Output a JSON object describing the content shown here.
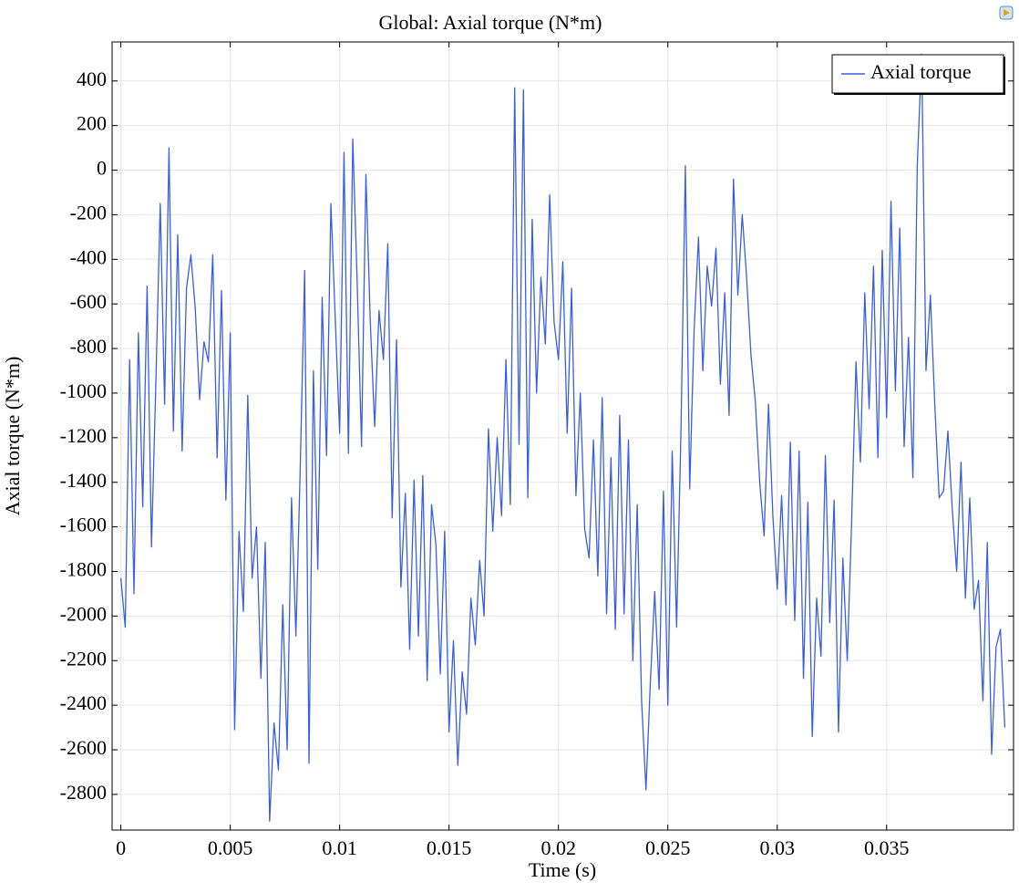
{
  "chart_data": {
    "type": "line",
    "title": "Global: Axial torque (N*m)",
    "xlabel": "Time (s)",
    "ylabel": "Axial torque (N*m)",
    "xlim": [
      -0.0004,
      0.0408
    ],
    "ylim": [
      -2960,
      575
    ],
    "xticks": [
      0,
      0.005,
      0.01,
      0.015,
      0.02,
      0.025,
      0.03,
      0.035
    ],
    "yticks": [
      -2800,
      -2600,
      -2400,
      -2200,
      -2000,
      -1800,
      -1600,
      -1400,
      -1200,
      -1000,
      -800,
      -600,
      -400,
      -200,
      0,
      200,
      400
    ],
    "grid": true,
    "legend": "upper right",
    "x": [
      0,
      0.0002,
      0.0004,
      0.0006,
      0.0008,
      0.001,
      0.0012,
      0.0014,
      0.0016,
      0.0018,
      0.002,
      0.0022,
      0.0024,
      0.0026,
      0.0028,
      0.003,
      0.0032,
      0.0034,
      0.0036,
      0.0038,
      0.004,
      0.0042,
      0.0044,
      0.0046,
      0.0048,
      0.005,
      0.0052,
      0.0054,
      0.0056,
      0.0058,
      0.006,
      0.0062,
      0.0064,
      0.0066,
      0.0068,
      0.007,
      0.0072,
      0.0074,
      0.0076,
      0.0078,
      0.008,
      0.0082,
      0.0084,
      0.0086,
      0.0088,
      0.009,
      0.0092,
      0.0094,
      0.0096,
      0.0098,
      0.01,
      0.0102,
      0.0104,
      0.0106,
      0.0108,
      0.011,
      0.0112,
      0.0114,
      0.0116,
      0.0118,
      0.012,
      0.0122,
      0.0124,
      0.0126,
      0.0128,
      0.013,
      0.0132,
      0.0134,
      0.0136,
      0.0138,
      0.014,
      0.0142,
      0.0144,
      0.0146,
      0.0148,
      0.015,
      0.0152,
      0.0154,
      0.0156,
      0.0158,
      0.016,
      0.0162,
      0.0164,
      0.0166,
      0.0168,
      0.017,
      0.0172,
      0.0174,
      0.0176,
      0.0178,
      0.018,
      0.0182,
      0.0184,
      0.0186,
      0.0188,
      0.019,
      0.0192,
      0.0194,
      0.0196,
      0.0198,
      0.02,
      0.0202,
      0.0204,
      0.0206,
      0.0208,
      0.021,
      0.0212,
      0.0214,
      0.0216,
      0.0218,
      0.022,
      0.0222,
      0.0224,
      0.0226,
      0.0228,
      0.023,
      0.0232,
      0.0234,
      0.0236,
      0.0238,
      0.024,
      0.0242,
      0.0244,
      0.0246,
      0.0248,
      0.025,
      0.0252,
      0.0254,
      0.0256,
      0.0258,
      0.026,
      0.0262,
      0.0264,
      0.0266,
      0.0268,
      0.027,
      0.0272,
      0.0274,
      0.0276,
      0.0278,
      0.028,
      0.0282,
      0.0284,
      0.0286,
      0.0288,
      0.029,
      0.0292,
      0.0294,
      0.0296,
      0.0298,
      0.03,
      0.0302,
      0.0304,
      0.0306,
      0.0308,
      0.031,
      0.0312,
      0.0314,
      0.0316,
      0.0318,
      0.032,
      0.0322,
      0.0324,
      0.0326,
      0.0328,
      0.033,
      0.0332,
      0.0334,
      0.0336,
      0.0338,
      0.034,
      0.0342,
      0.0344,
      0.0346,
      0.0348,
      0.035,
      0.0352,
      0.0354,
      0.0356,
      0.0358,
      0.036,
      0.0362,
      0.0364,
      0.0366,
      0.0368,
      0.037,
      0.0372,
      0.0374,
      0.0376,
      0.0378,
      0.038,
      0.0382,
      0.0384,
      0.0386,
      0.0388,
      0.039,
      0.0392,
      0.0394,
      0.0396,
      0.0398,
      0.04,
      0.0402,
      0.0404
    ],
    "series": [
      {
        "name": "Axial torque",
        "color": "#3a5fe0",
        "values": [
          -1830,
          -2050,
          -850,
          -1900,
          -730,
          -1510,
          -520,
          -1690,
          -950,
          -150,
          -1050,
          100,
          -1170,
          -290,
          -1260,
          -530,
          -380,
          -620,
          -1030,
          -770,
          -860,
          -380,
          -1290,
          -540,
          -1480,
          -730,
          -2510,
          -1620,
          -1980,
          -1010,
          -1830,
          -1600,
          -2280,
          -1670,
          -2920,
          -2480,
          -2690,
          -1950,
          -2600,
          -1470,
          -2090,
          -1330,
          -450,
          -2660,
          -900,
          -1790,
          -570,
          -1280,
          -150,
          -670,
          -1180,
          80,
          -1270,
          140,
          -500,
          -1240,
          -20,
          -680,
          -1150,
          -630,
          -850,
          -330,
          -1560,
          -760,
          -1870,
          -1450,
          -2150,
          -1390,
          -2090,
          -1370,
          -2290,
          -1500,
          -1680,
          -2260,
          -1620,
          -2520,
          -2110,
          -2670,
          -2250,
          -2440,
          -1920,
          -2130,
          -1750,
          -2000,
          -1160,
          -1620,
          -1200,
          -1550,
          -850,
          -1500,
          370,
          -1230,
          360,
          -1470,
          -220,
          -1000,
          -480,
          -780,
          -110,
          -680,
          -850,
          -410,
          -1180,
          -530,
          -1460,
          -1000,
          -1610,
          -1740,
          -1210,
          -1820,
          -1020,
          -1990,
          -1290,
          -2060,
          -1100,
          -1990,
          -1210,
          -2200,
          -1500,
          -2380,
          -2780,
          -2300,
          -1890,
          -2330,
          -1440,
          -2400,
          -1260,
          -2050,
          -1170,
          20,
          -1430,
          -720,
          -300,
          -900,
          -430,
          -610,
          -350,
          -960,
          -550,
          -1100,
          -40,
          -560,
          -200,
          -480,
          -830,
          -1040,
          -1400,
          -1640,
          -1050,
          -1550,
          -1880,
          -1460,
          -1950,
          -1220,
          -2020,
          -1260,
          -2280,
          -1490,
          -2540,
          -1920,
          -2180,
          -1280,
          -2030,
          -1480,
          -2520,
          -1740,
          -2200,
          -1580,
          -860,
          -1310,
          -550,
          -1070,
          -430,
          -1290,
          -360,
          -1110,
          -140,
          -990,
          -260,
          -1240,
          -750,
          -1380,
          20,
          520,
          -900,
          -560,
          -1050,
          -1470,
          -1440,
          -1170,
          -1520,
          -1800,
          -1310,
          -1920,
          -1470,
          -1970,
          -1840,
          -2380,
          -1670,
          -2620,
          -2140,
          -2060,
          -2500
        ]
      }
    ]
  }
}
